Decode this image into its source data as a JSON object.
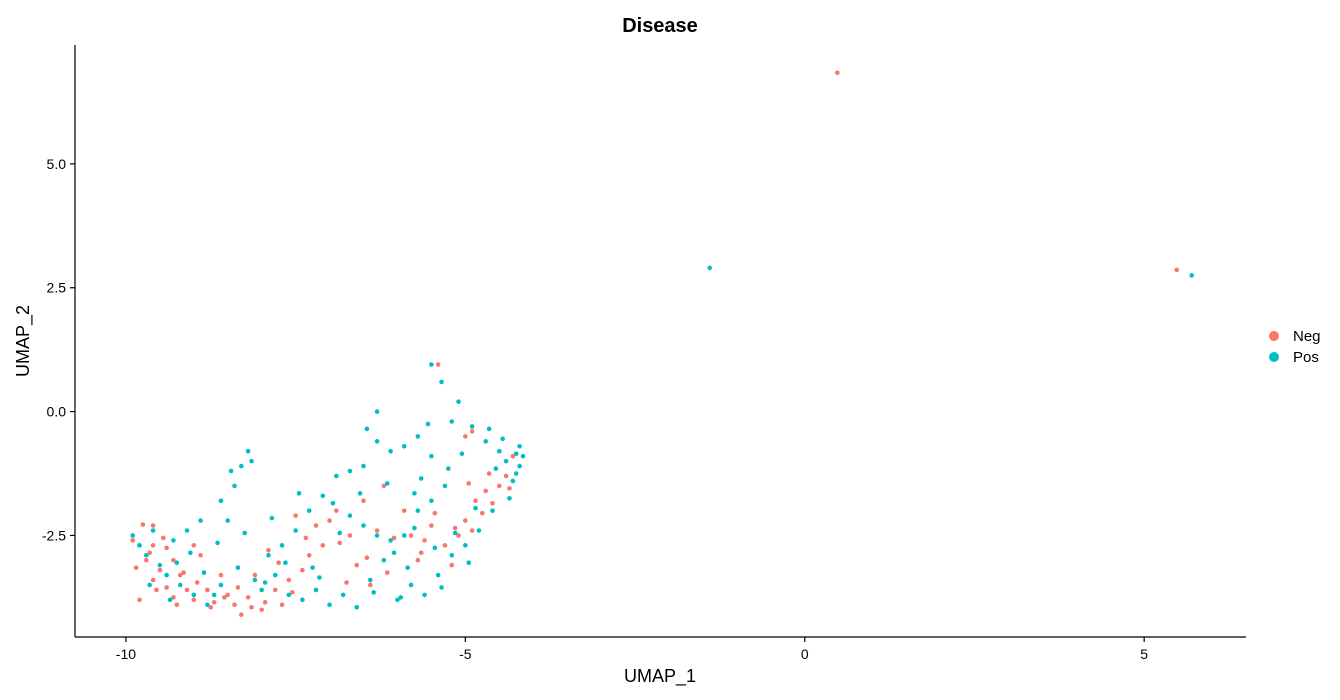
{
  "chart_data": {
    "type": "scatter",
    "title": "Disease",
    "xlabel": "UMAP_1",
    "ylabel": "UMAP_2",
    "xlim": [
      -10.75,
      6.5
    ],
    "ylim": [
      -4.55,
      7.4
    ],
    "x_ticks": [
      -10,
      -5,
      0,
      5
    ],
    "x_tick_labels": [
      "-10",
      "-5",
      "0",
      "5"
    ],
    "y_ticks": [
      -2.5,
      0,
      2.5,
      5
    ],
    "y_tick_labels": [
      "-2.5",
      "0.0",
      "2.5",
      "5.0"
    ],
    "grid": false,
    "legend_position": "right",
    "series": [
      {
        "name": "Neg",
        "color": "#F8766D",
        "points": [
          [
            0.48,
            6.84
          ],
          [
            5.48,
            2.86
          ],
          [
            -9.75,
            -2.28
          ],
          [
            -9.6,
            -2.3
          ],
          [
            -9.9,
            -2.6
          ],
          [
            -9.6,
            -2.7
          ],
          [
            -9.4,
            -2.75
          ],
          [
            -9.7,
            -3.0
          ],
          [
            -9.5,
            -3.2
          ],
          [
            -9.3,
            -3.0
          ],
          [
            -9.6,
            -3.4
          ],
          [
            -9.4,
            -3.55
          ],
          [
            -9.2,
            -3.3
          ],
          [
            -9.1,
            -3.6
          ],
          [
            -9.3,
            -3.75
          ],
          [
            -9.0,
            -3.8
          ],
          [
            -8.8,
            -3.6
          ],
          [
            -8.7,
            -3.85
          ],
          [
            -8.5,
            -3.7
          ],
          [
            -8.4,
            -3.9
          ],
          [
            -8.2,
            -3.75
          ],
          [
            -8.0,
            -4.0
          ],
          [
            -8.3,
            -4.1
          ],
          [
            -7.8,
            -3.6
          ],
          [
            -7.6,
            -3.4
          ],
          [
            -7.7,
            -3.9
          ],
          [
            -7.4,
            -3.2
          ],
          [
            -7.3,
            -2.9
          ],
          [
            -7.1,
            -2.7
          ],
          [
            -7.5,
            -2.1
          ],
          [
            -7.2,
            -2.3
          ],
          [
            -6.9,
            -2.0
          ],
          [
            -6.7,
            -2.5
          ],
          [
            -6.5,
            -1.8
          ],
          [
            -6.3,
            -2.4
          ],
          [
            -6.2,
            -1.5
          ],
          [
            -6.4,
            -3.5
          ],
          [
            -5.8,
            -2.5
          ],
          [
            -5.6,
            -2.6
          ],
          [
            -5.5,
            -2.3
          ],
          [
            -5.3,
            -2.7
          ],
          [
            -5.1,
            -2.5
          ],
          [
            -5.0,
            -2.2
          ],
          [
            -4.9,
            -2.4
          ],
          [
            -4.85,
            -1.8
          ],
          [
            -4.7,
            -1.6
          ],
          [
            -4.6,
            -1.85
          ],
          [
            -4.5,
            -1.5
          ],
          [
            -4.4,
            -1.3
          ],
          [
            -4.3,
            -0.9
          ],
          [
            -4.5,
            -0.8
          ],
          [
            -4.9,
            -0.4
          ],
          [
            -5.4,
            0.95
          ],
          [
            -5.0,
            -0.5
          ],
          [
            -9.8,
            -3.8
          ],
          [
            -8.9,
            -2.9
          ],
          [
            -8.1,
            -3.3
          ],
          [
            -8.6,
            -3.3
          ],
          [
            -9.0,
            -2.7
          ],
          [
            -5.7,
            -3.0
          ],
          [
            -5.2,
            -3.1
          ],
          [
            -5.9,
            -2.0
          ],
          [
            -6.6,
            -3.1
          ],
          [
            -7.9,
            -2.8
          ],
          [
            -7.0,
            -2.2
          ],
          [
            -9.55,
            -3.6
          ],
          [
            -9.45,
            -2.55
          ],
          [
            -8.95,
            -3.45
          ],
          [
            -8.35,
            -3.55
          ],
          [
            -7.75,
            -3.05
          ],
          [
            -6.85,
            -2.65
          ],
          [
            -6.05,
            -2.55
          ],
          [
            -5.45,
            -2.05
          ],
          [
            -4.95,
            -1.45
          ],
          [
            -4.65,
            -1.25
          ],
          [
            -4.35,
            -1.55
          ],
          [
            -4.75,
            -2.05
          ],
          [
            -5.15,
            -2.35
          ],
          [
            -5.65,
            -2.85
          ],
          [
            -6.45,
            -2.95
          ],
          [
            -7.35,
            -2.55
          ],
          [
            -8.15,
            -3.95
          ],
          [
            -8.55,
            -3.75
          ],
          [
            -9.15,
            -3.25
          ],
          [
            -9.65,
            -2.85
          ],
          [
            -9.85,
            -3.15
          ],
          [
            -9.25,
            -3.9
          ],
          [
            -8.75,
            -3.95
          ],
          [
            -7.95,
            -3.85
          ],
          [
            -7.55,
            -3.65
          ],
          [
            -6.75,
            -3.45
          ],
          [
            -6.15,
            -3.25
          ]
        ]
      },
      {
        "name": "Pos",
        "color": "#00BFC4",
        "points": [
          [
            -1.4,
            2.9
          ],
          [
            5.7,
            2.75
          ],
          [
            -9.9,
            -2.5
          ],
          [
            -9.7,
            -2.9
          ],
          [
            -9.5,
            -3.1
          ],
          [
            -9.3,
            -2.6
          ],
          [
            -9.2,
            -3.5
          ],
          [
            -9.0,
            -3.7
          ],
          [
            -8.8,
            -3.9
          ],
          [
            -8.6,
            -3.5
          ],
          [
            -8.45,
            -1.2
          ],
          [
            -8.3,
            -1.1
          ],
          [
            -8.4,
            -1.5
          ],
          [
            -8.6,
            -1.8
          ],
          [
            -8.2,
            -0.8
          ],
          [
            -8.15,
            -1.0
          ],
          [
            -8.5,
            -2.2
          ],
          [
            -8.0,
            -3.6
          ],
          [
            -7.8,
            -3.3
          ],
          [
            -7.6,
            -3.7
          ],
          [
            -7.4,
            -3.8
          ],
          [
            -7.2,
            -3.6
          ],
          [
            -7.0,
            -3.9
          ],
          [
            -6.8,
            -3.7
          ],
          [
            -6.6,
            -3.95
          ],
          [
            -6.4,
            -3.4
          ],
          [
            -6.2,
            -3.0
          ],
          [
            -6.0,
            -3.8
          ],
          [
            -5.8,
            -3.5
          ],
          [
            -5.6,
            -3.7
          ],
          [
            -5.4,
            -3.3
          ],
          [
            -5.2,
            -2.9
          ],
          [
            -5.0,
            -2.7
          ],
          [
            -6.9,
            -1.3
          ],
          [
            -6.7,
            -1.2
          ],
          [
            -6.5,
            -1.1
          ],
          [
            -6.3,
            -0.6
          ],
          [
            -6.1,
            -0.8
          ],
          [
            -5.9,
            -0.7
          ],
          [
            -5.7,
            -0.5
          ],
          [
            -5.5,
            -0.9
          ],
          [
            -6.3,
            0.0
          ],
          [
            -5.2,
            -0.2
          ],
          [
            -5.35,
            0.6
          ],
          [
            -5.5,
            0.95
          ],
          [
            -5.1,
            0.2
          ],
          [
            -4.9,
            -0.3
          ],
          [
            -4.7,
            -0.6
          ],
          [
            -4.5,
            -0.8
          ],
          [
            -4.4,
            -1.0
          ],
          [
            -4.3,
            -1.4
          ],
          [
            -4.2,
            -1.1
          ],
          [
            -4.15,
            -0.9
          ],
          [
            -4.2,
            -0.7
          ],
          [
            -4.6,
            -2.0
          ],
          [
            -4.8,
            -2.4
          ],
          [
            -5.3,
            -1.5
          ],
          [
            -5.5,
            -1.8
          ],
          [
            -5.7,
            -2.0
          ],
          [
            -5.9,
            -2.5
          ],
          [
            -6.1,
            -2.6
          ],
          [
            -6.3,
            -2.5
          ],
          [
            -6.5,
            -2.3
          ],
          [
            -6.7,
            -2.1
          ],
          [
            -7.1,
            -1.7
          ],
          [
            -7.3,
            -2.0
          ],
          [
            -7.5,
            -2.4
          ],
          [
            -7.7,
            -2.7
          ],
          [
            -7.9,
            -2.9
          ],
          [
            -9.4,
            -3.3
          ],
          [
            -9.1,
            -2.4
          ],
          [
            -8.9,
            -2.2
          ],
          [
            -9.6,
            -2.4
          ],
          [
            -9.8,
            -2.7
          ],
          [
            -9.65,
            -3.5
          ],
          [
            -9.35,
            -3.8
          ],
          [
            -8.7,
            -3.7
          ],
          [
            -8.1,
            -3.4
          ],
          [
            -5.15,
            -2.45
          ],
          [
            -5.45,
            -2.75
          ],
          [
            -5.75,
            -2.35
          ],
          [
            -6.05,
            -2.85
          ],
          [
            -6.85,
            -2.45
          ],
          [
            -7.25,
            -3.15
          ],
          [
            -7.65,
            -3.05
          ],
          [
            -4.35,
            -1.75
          ],
          [
            -4.55,
            -1.15
          ],
          [
            -4.25,
            -0.85
          ],
          [
            -4.45,
            -0.55
          ],
          [
            -4.65,
            -0.35
          ],
          [
            -5.05,
            -0.85
          ],
          [
            -5.25,
            -1.15
          ],
          [
            -5.65,
            -1.35
          ],
          [
            -6.15,
            -1.45
          ],
          [
            -6.55,
            -1.65
          ],
          [
            -6.95,
            -1.85
          ],
          [
            -7.45,
            -1.65
          ],
          [
            -7.85,
            -2.15
          ],
          [
            -8.25,
            -2.45
          ],
          [
            -8.65,
            -2.65
          ],
          [
            -9.05,
            -2.85
          ],
          [
            -9.25,
            -3.05
          ],
          [
            -8.85,
            -3.25
          ],
          [
            -8.35,
            -3.15
          ],
          [
            -7.95,
            -3.45
          ],
          [
            -7.15,
            -3.35
          ],
          [
            -6.35,
            -3.65
          ],
          [
            -5.85,
            -3.15
          ],
          [
            -5.35,
            -3.55
          ],
          [
            -4.95,
            -3.05
          ],
          [
            -5.55,
            -0.25
          ],
          [
            -5.75,
            -1.65
          ],
          [
            -6.45,
            -0.35
          ],
          [
            -4.85,
            -1.95
          ],
          [
            -4.25,
            -1.25
          ],
          [
            -5.95,
            -3.75
          ]
        ]
      }
    ]
  }
}
